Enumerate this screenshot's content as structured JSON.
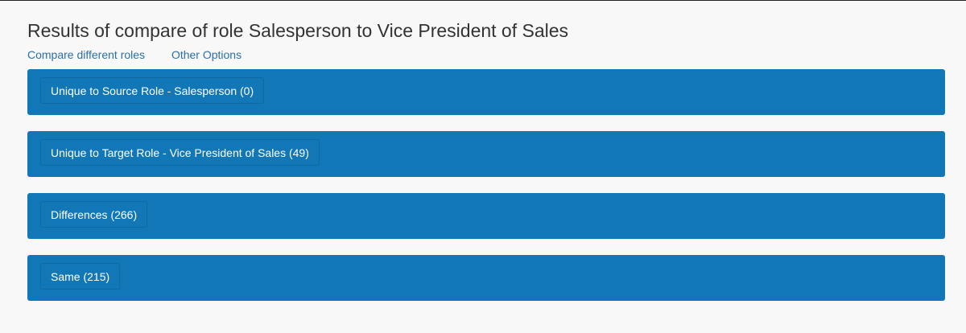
{
  "header": {
    "title": "Results of compare of role Salesperson to Vice President of Sales"
  },
  "links": {
    "compare_different_roles": "Compare different roles",
    "other_options": "Other Options"
  },
  "panels": [
    {
      "label": "Unique to Source Role - Salesperson (0)"
    },
    {
      "label": "Unique to Target Role - Vice President of Sales (49)"
    },
    {
      "label": "Differences (266)"
    },
    {
      "label": "Same (215)"
    }
  ],
  "colors": {
    "panel_background": "#1277b6",
    "link": "#2a6fa8",
    "page_background": "#f8f8f8"
  }
}
